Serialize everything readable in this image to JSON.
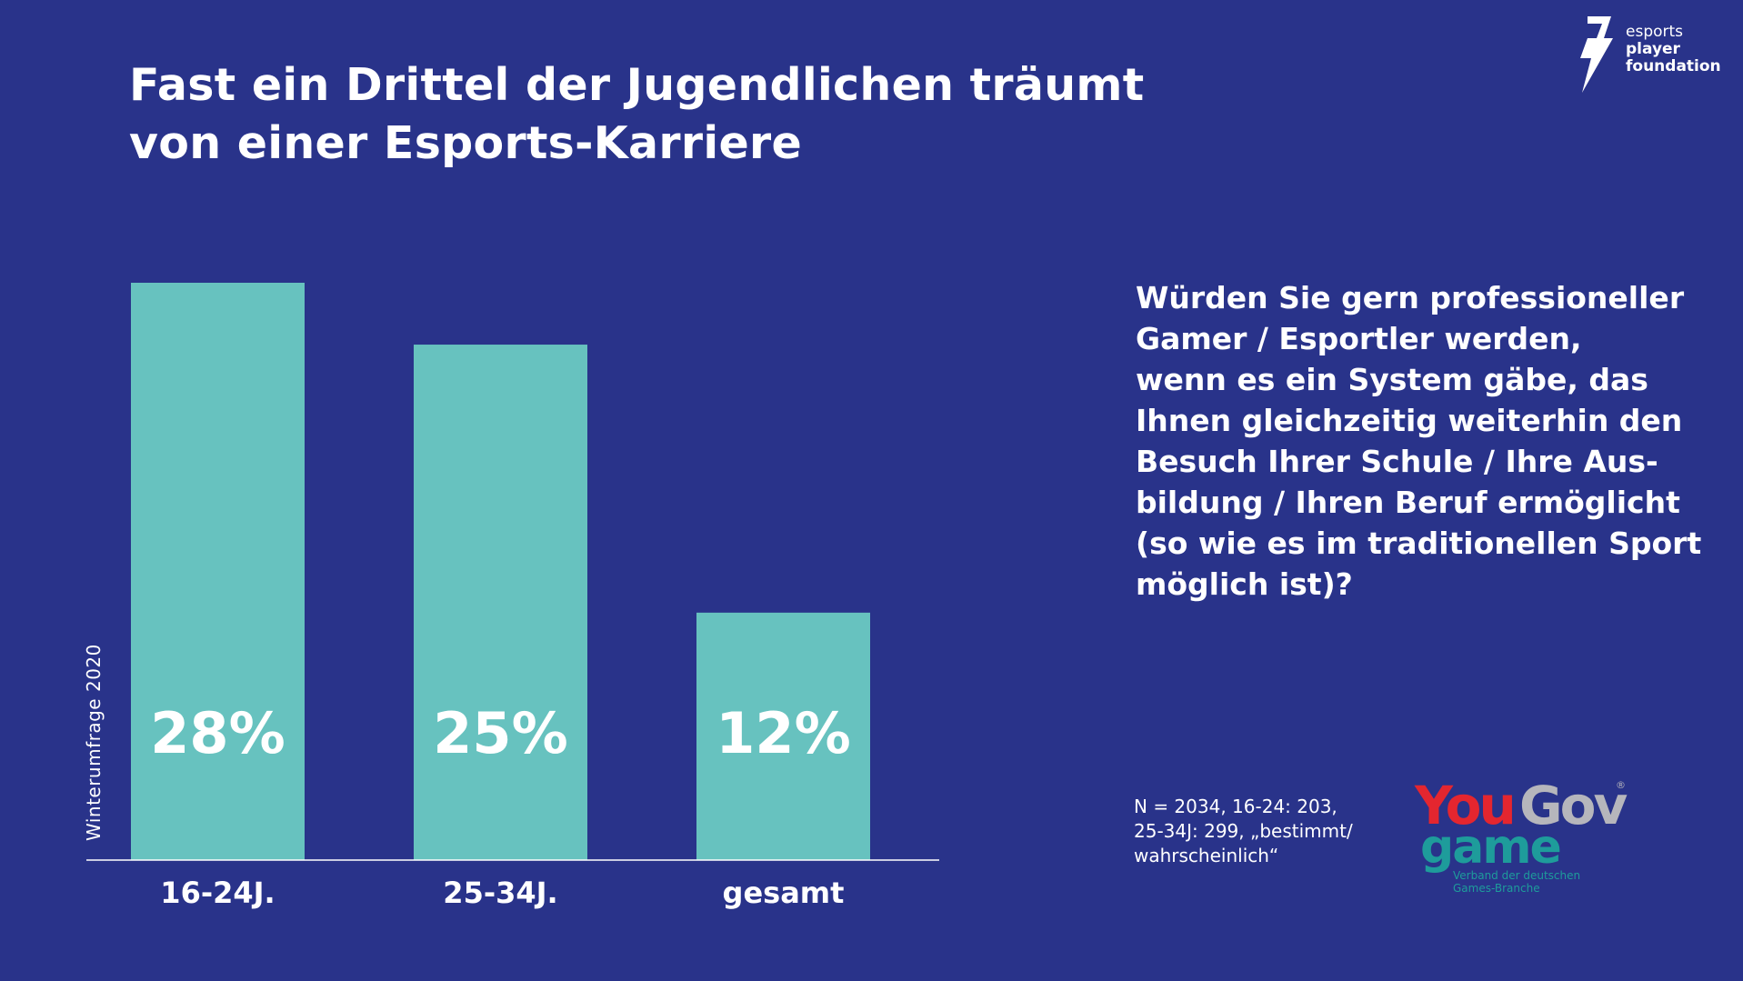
{
  "title_lines": [
    "Fast ein Drittel der Jugendlichen träumt",
    "von einer Esports-Karriere"
  ],
  "logo_epf": {
    "words": [
      "esports",
      "player",
      "foundation"
    ]
  },
  "chart_data": {
    "type": "bar",
    "categories": [
      "16-24J.",
      "25-34J.",
      "gesamt"
    ],
    "values": [
      28,
      25,
      12
    ],
    "value_labels": [
      "28%",
      "25%",
      "12%"
    ],
    "ylim": [
      0,
      28
    ],
    "ylabel": "Winterumfrage 2020",
    "bar_color": "#67c2bf"
  },
  "question_lines": [
    "Würden Sie gern professioneller",
    "Gamer / Esportler werden,",
    "wenn es ein System gäbe, das",
    "Ihnen gleichzeitig weiterhin den",
    "Besuch Ihrer Schule / Ihre Aus-",
    "bildung / Ihren Beruf ermöglicht",
    "(so wie es im traditionellen Sport",
    "möglich ist)?"
  ],
  "note_lines": [
    "N = 2034, 16-24: 203,",
    "25-34J: 299, „bestimmt/",
    "wahrscheinlich“"
  ],
  "logo_yougov": {
    "you": "You",
    "gov": "Gov",
    "reg": "®",
    "game": "game",
    "sub_lines": [
      "Verband der deutschen",
      "Games-Branche"
    ]
  }
}
